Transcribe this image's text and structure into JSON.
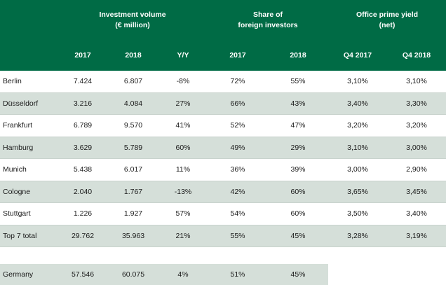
{
  "header": {
    "group_investment": "Investment volume\n(€ million)",
    "group_share": "Share of\nforeign investors",
    "group_yield": "Office prime yield\n(net)",
    "columns": [
      "2017",
      "2018",
      "Y/Y",
      "2017",
      "2018",
      "Q4 2017",
      "Q4 2018"
    ]
  },
  "rows": [
    {
      "city": "Berlin",
      "v2017": "7.424",
      "v2018": "6.807",
      "yy": "-8%",
      "s2017": "72%",
      "s2018": "55%",
      "q2017": "3,10%",
      "q2018": "3,10%"
    },
    {
      "city": "Düsseldorf",
      "v2017": "3.216",
      "v2018": "4.084",
      "yy": "27%",
      "s2017": "66%",
      "s2018": "43%",
      "q2017": "3,40%",
      "q2018": "3,30%"
    },
    {
      "city": "Frankfurt",
      "v2017": "6.789",
      "v2018": "9.570",
      "yy": "41%",
      "s2017": "52%",
      "s2018": "47%",
      "q2017": "3,20%",
      "q2018": "3,20%"
    },
    {
      "city": "Hamburg",
      "v2017": "3.629",
      "v2018": "5.789",
      "yy": "60%",
      "s2017": "49%",
      "s2018": "29%",
      "q2017": "3,10%",
      "q2018": "3,00%"
    },
    {
      "city": "Munich",
      "v2017": "5.438",
      "v2018": "6.017",
      "yy": "11%",
      "s2017": "36%",
      "s2018": "39%",
      "q2017": "3,00%",
      "q2018": "2,90%"
    },
    {
      "city": "Cologne",
      "v2017": "2.040",
      "v2018": "1.767",
      "yy": "-13%",
      "s2017": "42%",
      "s2018": "60%",
      "q2017": "3,65%",
      "q2018": "3,45%"
    },
    {
      "city": "Stuttgart",
      "v2017": "1.226",
      "v2018": "1.927",
      "yy": "57%",
      "s2017": "54%",
      "s2018": "60%",
      "q2017": "3,50%",
      "q2018": "3,40%"
    },
    {
      "city": "Top 7 total",
      "v2017": "29.762",
      "v2018": "35.963",
      "yy": "21%",
      "s2017": "55%",
      "s2018": "45%",
      "q2017": "3,28%",
      "q2018": "3,19%"
    }
  ],
  "germany": {
    "city": "Germany",
    "v2017": "57.546",
    "v2018": "60.075",
    "yy": "4%",
    "s2017": "51%",
    "s2018": "45%"
  },
  "colors": {
    "header_bg": "#006b45",
    "alt_row_bg": "#d5dfd9",
    "header_text": "#ffffff"
  }
}
